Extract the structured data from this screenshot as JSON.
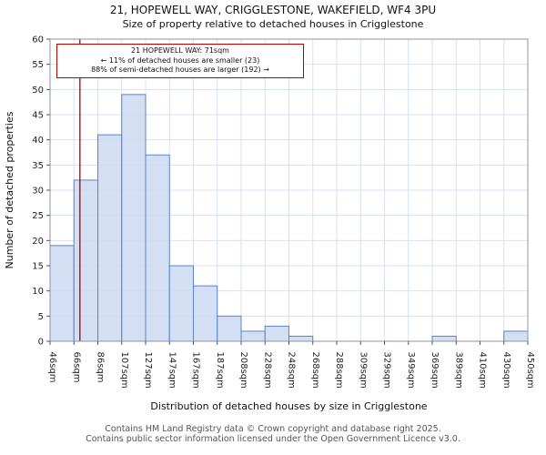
{
  "title": "21, HOPEWELL WAY, CRIGGLESTONE, WAKEFIELD, WF4 3PU",
  "subtitle": "Size of property relative to detached houses in Crigglestone",
  "annotation": {
    "line1": "21 HOPEWELL WAY: 71sqm",
    "line2": "← 11% of detached houses are smaller (23)",
    "line3": "88% of semi-detached houses are larger (192) →"
  },
  "footer": {
    "line1": "Contains HM Land Registry data © Crown copyright and database right 2025.",
    "line2": "Contains public sector information licensed under the Open Government Licence v3.0."
  },
  "chart_data": {
    "type": "bar",
    "title": "21, HOPEWELL WAY, CRIGGLESTONE, WAKEFIELD, WF4 3PU",
    "subtitle": "Size of property relative to detached houses in Crigglestone",
    "xlabel": "Distribution of detached houses by size in Crigglestone",
    "ylabel": "Number of detached properties",
    "bin_edges_sqm": [
      46,
      66,
      86,
      107,
      127,
      147,
      167,
      187,
      208,
      228,
      248,
      268,
      288,
      309,
      329,
      349,
      369,
      389,
      410,
      430,
      450
    ],
    "tick_labels": [
      "46sqm",
      "66sqm",
      "86sqm",
      "107sqm",
      "127sqm",
      "147sqm",
      "167sqm",
      "187sqm",
      "208sqm",
      "228sqm",
      "248sqm",
      "268sqm",
      "288sqm",
      "309sqm",
      "329sqm",
      "349sqm",
      "369sqm",
      "389sqm",
      "410sqm",
      "430sqm",
      "450sqm"
    ],
    "values": [
      19,
      32,
      41,
      49,
      37,
      15,
      11,
      5,
      2,
      3,
      1,
      0,
      0,
      0,
      0,
      0,
      1,
      0,
      0,
      2
    ],
    "marker_value_sqm": 71,
    "ylim": [
      0,
      60
    ],
    "ytick_step": 5,
    "grid": true,
    "legend": "none",
    "colors": {
      "bar_fill": "#ccd9f1",
      "bar_stroke": "#5b84c8",
      "marker_line": "#aa0000",
      "grid": "#d9e1f0",
      "axis": "#8a93a6",
      "tick_text": "#222222"
    }
  }
}
